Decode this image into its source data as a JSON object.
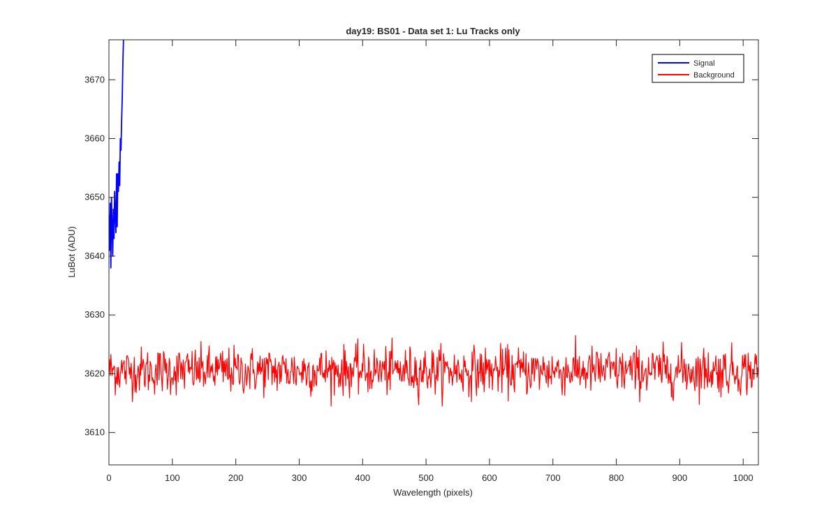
{
  "chart_data": {
    "type": "line",
    "title": "day19: BS01 - Data set 1: Lu Tracks only",
    "xlabel": "Wavelength (pixels)",
    "ylabel": "LuBot (ADU)",
    "xlim": [
      0,
      1024
    ],
    "ylim": [
      3604.5,
      3676.8
    ],
    "xticks": [
      0,
      100,
      200,
      300,
      400,
      500,
      600,
      700,
      800,
      900,
      1000
    ],
    "yticks": [
      3610,
      3620,
      3630,
      3640,
      3650,
      3660,
      3670
    ],
    "legend_position": "top-right",
    "grid": false,
    "series": [
      {
        "name": "Signal",
        "color": "#0000ff",
        "sampled": true,
        "x": [
          0,
          1,
          2,
          3,
          4,
          5,
          6,
          7,
          8,
          9,
          10,
          11,
          12,
          13,
          14,
          15,
          16,
          17,
          18,
          19,
          20,
          21,
          22,
          23
        ],
        "y": [
          3647,
          3641,
          3649,
          3638,
          3650,
          3645,
          3640,
          3648,
          3643,
          3651,
          3647,
          3644,
          3654,
          3645,
          3654,
          3651,
          3656,
          3652,
          3660,
          3658,
          3663,
          3667,
          3673,
          3677
        ]
      },
      {
        "name": "Background",
        "color": "#ff0000",
        "sampled": true,
        "note_center": 3620.5,
        "x_start": 0,
        "x_end": 1024,
        "points": 1024,
        "amplitude": 2.0
      }
    ]
  }
}
